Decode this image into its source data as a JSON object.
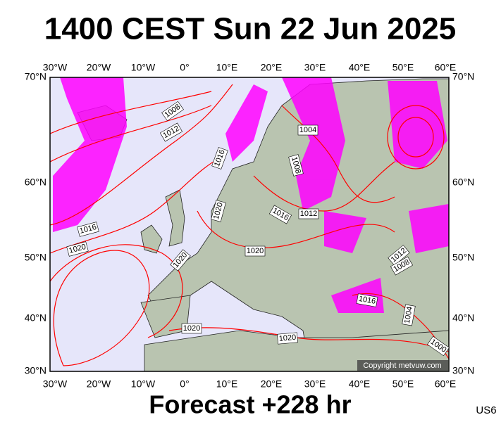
{
  "header": {
    "title": "1400 CEST Sun 22 Jun 2025"
  },
  "map": {
    "lon_labels": [
      "30°W",
      "20°W",
      "10°W",
      "0°",
      "10°E",
      "20°E",
      "30°E",
      "40°E",
      "50°E",
      "60°E"
    ],
    "lat_labels": [
      "70°N",
      "60°N",
      "50°N",
      "40°N",
      "30°N"
    ],
    "isobar_labels": [
      "1008",
      "1012",
      "1016",
      "1020",
      "1016",
      "1020",
      "1020",
      "1020",
      "1016",
      "1012",
      "1004",
      "1008",
      "1016",
      "1012",
      "1008",
      "1004",
      "1000",
      "1020",
      "1020"
    ],
    "copyright": "Copyright metvuw.com"
  },
  "footer": {
    "forecast": "Forecast +228 hr",
    "code": "US6"
  }
}
